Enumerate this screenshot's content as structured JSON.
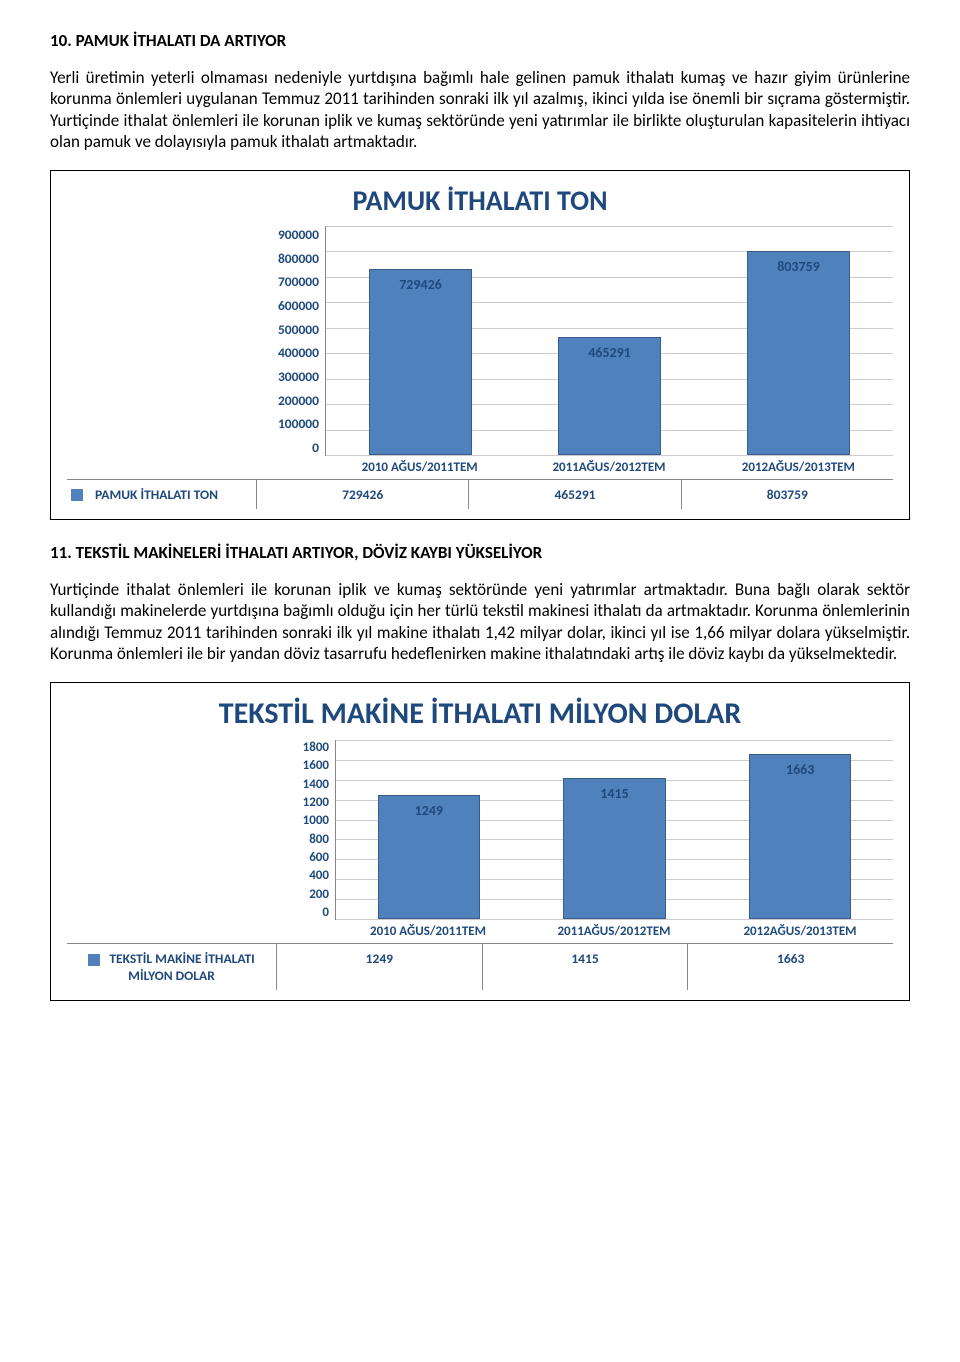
{
  "section10": {
    "heading": "10. PAMUK İTHALATI DA ARTIYOR",
    "paragraph": "Yerli üretimin yeterli olmaması nedeniyle yurtdışına bağımlı hale gelinen pamuk ithalatı kumaş ve hazır giyim ürünlerine korunma önlemleri uygulanan Temmuz 2011 tarihinden sonraki ilk yıl azalmış, ikinci yılda ise önemli bir sıçrama göstermiştir. Yurtiçinde ithalat önlemleri ile korunan iplik ve kumaş sektöründe yeni yatırımlar ile birlikte oluşturulan kapasitelerin ihtiyacı olan pamuk ve dolayısıyla pamuk ithalatı artmaktadır."
  },
  "chart1": {
    "type": "bar",
    "title": "PAMUK İTHALATI TON",
    "series_label": "PAMUK İTHALATI TON",
    "bar_color": "#4f81bd",
    "bar_border": "#385d8a",
    "title_color": "#1f497d",
    "ymax": 900000,
    "ytick_step": 100000,
    "yticks": [
      "900000",
      "800000",
      "700000",
      "600000",
      "500000",
      "400000",
      "300000",
      "200000",
      "100000",
      "0"
    ],
    "categories": [
      "2010 AĞUS/2011TEM",
      "2011AĞUS/2012TEM",
      "2012AĞUS/2013TEM"
    ],
    "values": [
      729426,
      465291,
      803759
    ],
    "value_labels": [
      "729426",
      "465291",
      "803759"
    ]
  },
  "section11": {
    "heading": "11. TEKSTİL MAKİNELERİ İTHALATI ARTIYOR, DÖVİZ KAYBI YÜKSELİYOR",
    "paragraph": "Yurtiçinde ithalat önlemleri ile korunan iplik ve kumaş sektöründe yeni yatırımlar artmaktadır. Buna bağlı olarak sektör kullandığı makinelerde yurtdışına bağımlı olduğu için her türlü tekstil makinesi ithalatı da artmaktadır. Korunma önlemlerinin alındığı Temmuz 2011 tarihinden sonraki ilk yıl makine ithalatı 1,42 milyar dolar, ikinci yıl ise 1,66 milyar dolara yükselmiştir. Korunma önlemleri ile bir yandan döviz tasarrufu hedeflenirken makine ithalatındaki artış ile döviz kaybı da yükselmektedir."
  },
  "chart2": {
    "type": "bar",
    "title": "TEKSTİL MAKİNE İTHALATI MİLYON DOLAR",
    "series_label": "TEKSTİL MAKİNE İTHALATI MİLYON DOLAR",
    "bar_color": "#4f81bd",
    "bar_border": "#385d8a",
    "title_color": "#1f497d",
    "ymax": 1800,
    "ytick_step": 200,
    "yticks": [
      "1800",
      "1600",
      "1400",
      "1200",
      "1000",
      "800",
      "600",
      "400",
      "200",
      "0"
    ],
    "categories": [
      "2010 AĞUS/2011TEM",
      "2011AĞUS/2012TEM",
      "2012AĞUS/2013TEM"
    ],
    "values": [
      1249,
      1415,
      1663
    ],
    "value_labels": [
      "1249",
      "1415",
      "1663"
    ]
  }
}
